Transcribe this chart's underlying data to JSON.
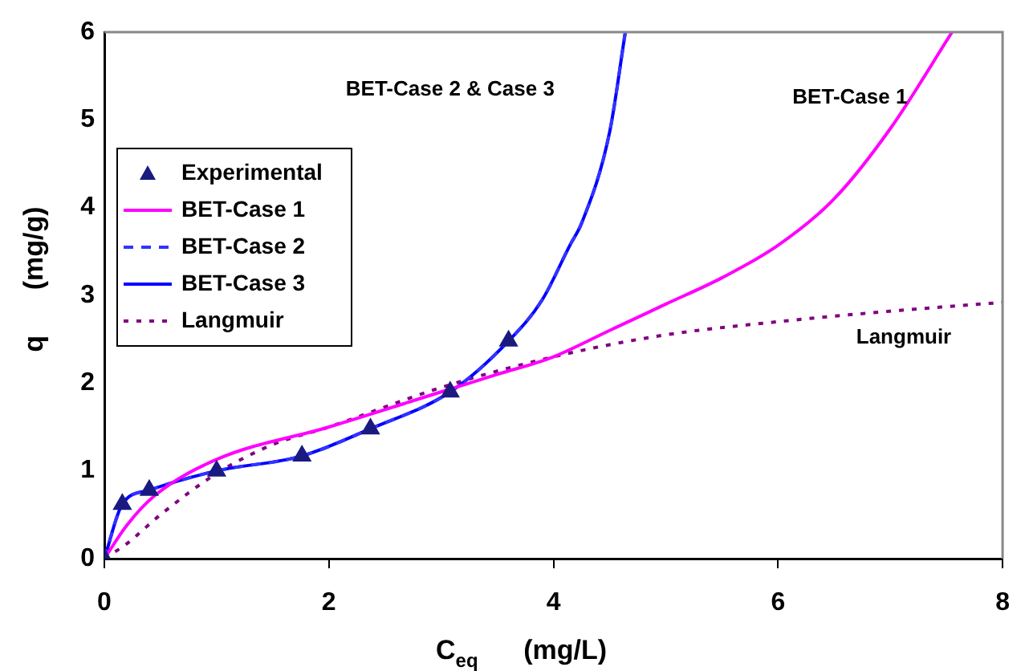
{
  "chart_data": {
    "type": "line",
    "xlabel": "C$_{eq}$      (mg/L)",
    "ylabel": "q      (mg/g)",
    "xlim": [
      0,
      8
    ],
    "xticks": [
      0,
      2,
      4,
      6,
      8
    ],
    "ylim": [
      0,
      6
    ],
    "yticks": [
      0,
      1,
      2,
      3,
      4,
      5,
      6
    ],
    "grid": false,
    "legend": "left",
    "marker": "none",
    "series": [
      {
        "name": "Experimental",
        "type": "scatter",
        "marker": "triangle",
        "color": "#1a1a80",
        "x": [
          0,
          0.16,
          0.4,
          1.0,
          1.76,
          2.37,
          3.08,
          3.6
        ],
        "values": [
          0,
          0.62,
          0.78,
          1.0,
          1.17,
          1.48,
          1.9,
          2.48
        ]
      },
      {
        "name": "BET-Case 1",
        "type": "line",
        "line_style": "solid",
        "color": "#ff00ff",
        "x": [
          0,
          0.2,
          0.45,
          1.0,
          2,
          3,
          3.5,
          4,
          4.5,
          5,
          5.5,
          6,
          6.5,
          7,
          7.55
        ],
        "values": [
          0,
          0.38,
          0.72,
          1.13,
          1.5,
          1.9,
          2.1,
          2.3,
          2.6,
          2.9,
          3.2,
          3.57,
          4.1,
          4.9,
          6.0
        ]
      },
      {
        "name": "BET-Case 2",
        "type": "line",
        "line_style": "dashed",
        "color": "#3333ff",
        "x": [
          0,
          0.16,
          0.4,
          1.0,
          1.76,
          2.37,
          3.08,
          3.6,
          3.9,
          4.15,
          4.25,
          4.5,
          4.64
        ],
        "values": [
          0,
          0.62,
          0.78,
          1.0,
          1.17,
          1.48,
          1.9,
          2.48,
          2.95,
          3.58,
          3.82,
          4.86,
          6.0
        ]
      },
      {
        "name": "BET-Case 3",
        "type": "line",
        "line_style": "solid",
        "color": "#0000ff",
        "x": [
          0,
          0.16,
          0.4,
          1.0,
          1.76,
          2.37,
          3.08,
          3.6,
          3.9,
          4.15,
          4.25,
          4.5,
          4.64
        ],
        "values": [
          0,
          0.62,
          0.78,
          1.0,
          1.17,
          1.48,
          1.9,
          2.48,
          2.95,
          3.58,
          3.82,
          4.86,
          6.0
        ]
      },
      {
        "name": "Langmuir",
        "type": "line",
        "line_style": "dotted",
        "color": "#800080",
        "x": [
          0,
          0.2,
          0.5,
          1,
          1.5,
          2,
          3,
          4,
          5,
          6,
          7,
          8
        ],
        "values": [
          0,
          0.17,
          0.5,
          0.97,
          1.3,
          1.5,
          1.95,
          2.3,
          2.55,
          2.7,
          2.82,
          2.92
        ]
      }
    ],
    "annotations": [
      "BET-Case 2 & Case 3",
      "BET-Case 1",
      "Langmuir"
    ]
  }
}
